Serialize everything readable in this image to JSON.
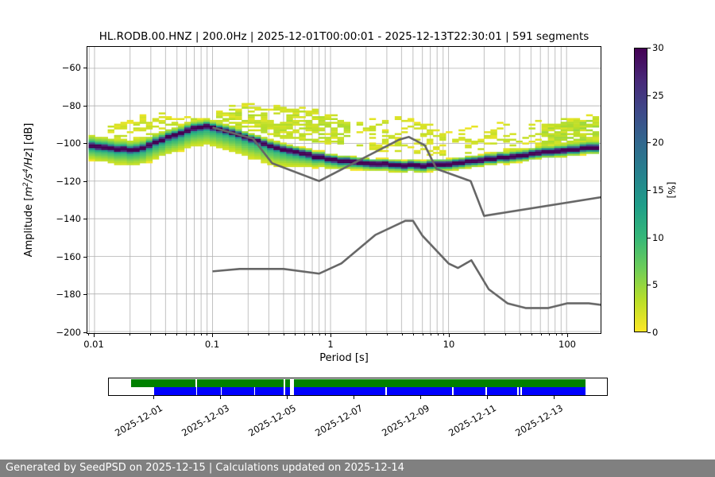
{
  "footer": {
    "text": "Generated by SeedPSD on 2025-12-15 | Calculations updated on 2025-12-14",
    "bg": "#808080",
    "fg": "#ffffff"
  },
  "chart_data": {
    "type": "heatmap",
    "subtype": "ppsd-probabilistic-power-spectral-density",
    "title": "HL.RODB.00.HNZ | 200.0Hz | 2025-12-01T00:00:01 - 2025-12-13T22:30:01 | 591 segments",
    "station": "HL.RODB.00.HNZ",
    "sampling_rate": "200.0Hz",
    "time_range": "2025-12-01T00:00:01 - 2025-12-13T22:30:01",
    "segments": "591 segments",
    "xlabel": "Period [s]",
    "ylabel_parts": [
      {
        "t": "Amplitude ["
      },
      {
        "t": "m",
        "i": 1
      },
      {
        "t": "2",
        "sup": 1,
        "i": 1
      },
      {
        "t": "/s",
        "i": 1
      },
      {
        "t": "4",
        "sup": 1,
        "i": 1
      },
      {
        "t": "/Hz",
        "i": 1
      },
      {
        "t": "] [dB]"
      }
    ],
    "xscale": "log",
    "xlim": [
      0.0087,
      195
    ],
    "ylim": [
      -200.8,
      -48.6
    ],
    "x_ticks": [
      0.01,
      0.1,
      1,
      10,
      100
    ],
    "x_tick_labels": [
      "0.01",
      "0.1",
      "1",
      "10",
      "100"
    ],
    "y_ticks": [
      -60,
      -80,
      -100,
      -120,
      -140,
      -160,
      -180,
      -200
    ],
    "y_tick_labels": [
      "−60",
      "−80",
      "−100",
      "−120",
      "−140",
      "−160",
      "−180",
      "−200"
    ],
    "grid": true,
    "grid_color": "#b0b0b0",
    "colorbar": {
      "label": "[%]",
      "min": 0,
      "max": 30,
      "ticks": [
        0,
        5,
        10,
        15,
        20,
        25,
        30
      ],
      "colormap": "viridis_r",
      "viridis_stops": [
        "#440154",
        "#482878",
        "#3e4989",
        "#31688e",
        "#26828e",
        "#1f9e89",
        "#35b779",
        "#6dcd59",
        "#b8de29",
        "#fde725"
      ]
    },
    "ppsd_mode_curve": {
      "comment": "most-probable PSD amplitude (dB) vs period (s), read from the dark ridge",
      "periods": [
        0.0088,
        0.011,
        0.016,
        0.022,
        0.03,
        0.045,
        0.07,
        0.09,
        0.12,
        0.17,
        0.25,
        0.38,
        0.6,
        0.95,
        1.5,
        2.5,
        4,
        6.5,
        9,
        14,
        22,
        35,
        55,
        90,
        140,
        190
      ],
      "amplitudes": [
        -101.3,
        -101.9,
        -103.2,
        -103.5,
        -100.6,
        -96,
        -92,
        -91.2,
        -92.6,
        -95.6,
        -99.3,
        -102.9,
        -105.8,
        -108.1,
        -109.9,
        -111,
        -111.6,
        -111.7,
        -111.2,
        -109.9,
        -108.4,
        -106.9,
        -105.4,
        -104,
        -102.9,
        -102.2
      ],
      "peak_probability_pct": 30
    },
    "distribution_spread": {
      "logp": [
        -2.05,
        -1.6,
        -1.2,
        -0.8,
        -0.45,
        -0.1,
        0.3,
        0.9,
        1.3,
        1.8,
        2.27
      ],
      "sigma_above_db": [
        3.0,
        2.6,
        2.2,
        2.0,
        1.8,
        1.6,
        1.5,
        1.5,
        1.6,
        1.8,
        2.0
      ],
      "sigma_below_db": [
        4.0,
        4.6,
        5.0,
        5.4,
        5.2,
        2.8,
        1.9,
        1.9,
        1.7,
        1.7,
        1.8
      ],
      "broad_pct": [
        12,
        12,
        12,
        11,
        11,
        13,
        13,
        13,
        13,
        13,
        14
      ]
    },
    "low_probability_clouds": [
      {
        "name": "high-freq-burst",
        "t": [
          -1.88,
          -0.93
        ],
        "top": [
          [
            -1.88,
            -89
          ],
          [
            -1.55,
            -85
          ],
          [
            -1.2,
            -84.5
          ],
          [
            -0.93,
            -87
          ]
        ],
        "bot_off": [
          [
            -1.88,
            3
          ],
          [
            -0.93,
            3.5
          ]
        ],
        "pct": 2.2,
        "density": 0.6
      },
      {
        "name": "microseism-storm",
        "t": [
          -0.97,
          0.15
        ],
        "top": [
          [
            -0.97,
            -83.5
          ],
          [
            -0.75,
            -79.5
          ],
          [
            -0.45,
            -79.5
          ],
          [
            -0.2,
            -81.5
          ],
          [
            0.15,
            -86
          ]
        ],
        "bot_off": [
          [
            -0.97,
            3.5
          ],
          [
            -0.6,
            5
          ],
          [
            -0.3,
            6.5
          ],
          [
            0.15,
            8.6
          ]
        ],
        "pct": 2.6,
        "density": 0.75
      },
      {
        "name": "mid-period-arch",
        "t": [
          0.2,
          0.95
        ],
        "top": [
          [
            0.2,
            -88
          ],
          [
            0.45,
            -85.5
          ],
          [
            0.7,
            -87.5
          ],
          [
            0.95,
            -93
          ]
        ],
        "bot_off": [
          [
            0.2,
            6
          ],
          [
            0.95,
            4.5
          ]
        ],
        "pct": 2.0,
        "density": 0.45
      },
      {
        "name": "long-period-streaks",
        "t": [
          0.95,
          1.78
        ],
        "top": [
          [
            0.95,
            -94
          ],
          [
            1.4,
            -89
          ],
          [
            1.78,
            -87
          ]
        ],
        "bot_off": [
          [
            0.95,
            3.5
          ],
          [
            1.78,
            3
          ]
        ],
        "pct": 2.0,
        "density": 0.3
      },
      {
        "name": "very-long-period",
        "t": [
          1.78,
          2.28
        ],
        "top": [
          [
            1.78,
            -90
          ],
          [
            2.05,
            -86
          ],
          [
            2.28,
            -84.5
          ]
        ],
        "bot_off": [
          [
            1.78,
            2.5
          ],
          [
            2.28,
            2.5
          ]
        ],
        "pct": 3.2,
        "density": 0.85
      }
    ],
    "noise_models": {
      "color": "#666666",
      "nhnm": {
        "periods": [
          0.1,
          0.22,
          0.32,
          0.8,
          3.8,
          4.6,
          6.3,
          7.9,
          15.4,
          20,
          354.8
        ],
        "db": [
          -91.5,
          -97.4,
          -110.5,
          -120,
          -98,
          -96.5,
          -101,
          -113.5,
          -120,
          -138.5,
          -126
        ]
      },
      "nlnm": {
        "periods": [
          0.1,
          0.17,
          0.4,
          0.8,
          1.24,
          2.4,
          4.3,
          5,
          6,
          10,
          12,
          15.6,
          21.9,
          31.6,
          45,
          70,
          101,
          154,
          328
        ],
        "db": [
          -168,
          -166.7,
          -166.7,
          -169.2,
          -163.7,
          -148.6,
          -141.1,
          -141.1,
          -149,
          -163.8,
          -166.2,
          -162.1,
          -177.5,
          -185,
          -187.5,
          -187.5,
          -185,
          -185,
          -187.5
        ]
      }
    }
  },
  "timeline": {
    "tick_labels": [
      "2025-12-01",
      "2025-12-03",
      "2025-12-05",
      "2025-12-07",
      "2025-12-09",
      "2025-12-11",
      "2025-12-13"
    ],
    "tick_days": [
      0,
      2,
      4,
      6,
      8,
      10,
      12
    ],
    "green": {
      "meaning": "data availability",
      "color": "#008000",
      "segments": [
        [
          -0.69,
          1.25
        ],
        [
          1.29,
          3.89
        ],
        [
          3.94,
          4.08
        ],
        [
          4.18,
          12.93
        ]
      ]
    },
    "blue": {
      "meaning": "psd coverage",
      "color": "#0000ff",
      "segments": [
        [
          0,
          1.25
        ],
        [
          1.29,
          1.99
        ],
        [
          2.03,
          2.99
        ],
        [
          3.03,
          3.89
        ],
        [
          3.94,
          4.08
        ],
        [
          4.18,
          6.94
        ],
        [
          6.98,
          8.94
        ],
        [
          8.98,
          9.94
        ],
        [
          9.98,
          10.88
        ],
        [
          10.92,
          10.98
        ],
        [
          11.02,
          12.93
        ]
      ]
    }
  }
}
